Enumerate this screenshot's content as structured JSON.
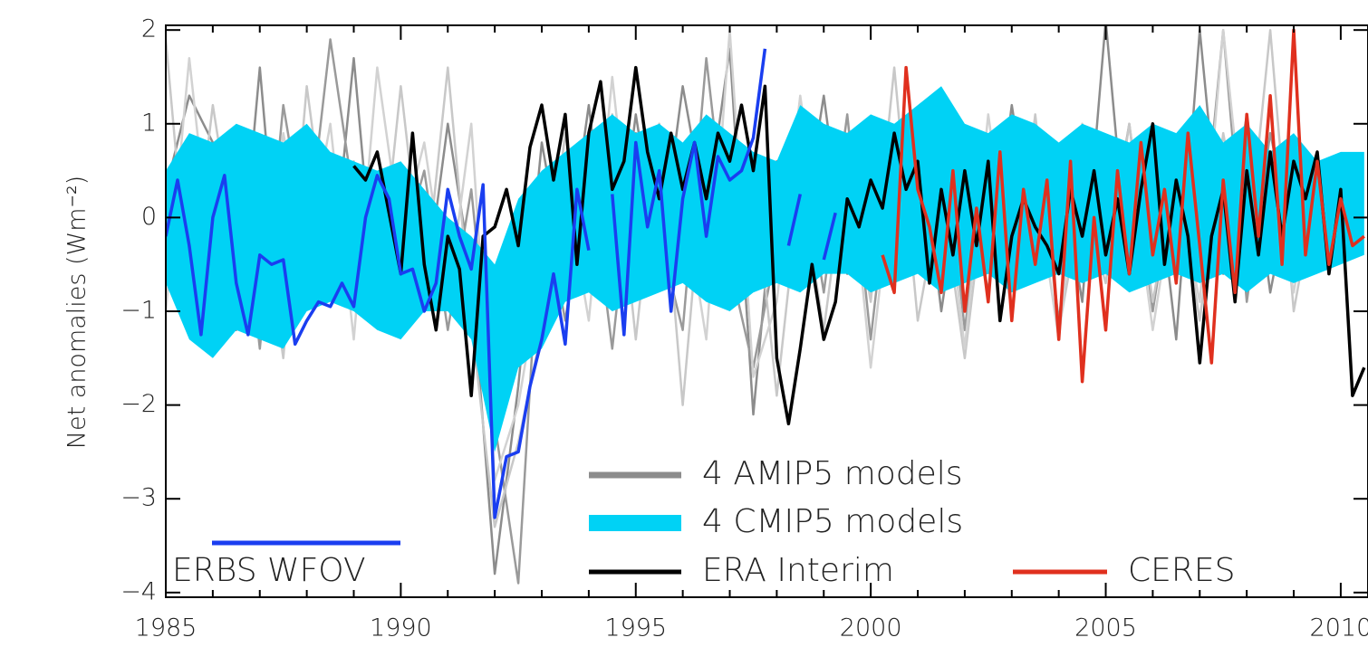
{
  "chart_data": {
    "type": "line",
    "ylabel": "Net anomalies (Wm⁻²)",
    "xlim": [
      1985,
      2010.58
    ],
    "ylim": [
      -4.05,
      2.05
    ],
    "xticks": [
      1985,
      1990,
      1995,
      2000,
      2005,
      2010
    ],
    "xminorticks": [
      1986,
      1987,
      1988,
      1989,
      1991,
      1992,
      1993,
      1994,
      1996,
      1997,
      1998,
      1999,
      2001,
      2002,
      2003,
      2004,
      2006,
      2007,
      2008,
      2009
    ],
    "yticks": [
      {
        "value": -4,
        "label": "−4"
      },
      {
        "value": -3,
        "label": "−3"
      },
      {
        "value": -2,
        "label": "−2"
      },
      {
        "value": -1,
        "label": "−1"
      },
      0,
      1,
      2
    ],
    "series": [
      {
        "name": "4 AMIP5 models",
        "kind": "ensemble",
        "color": "#8c8c8c",
        "x": [
          1985,
          1985.5,
          1986,
          1986.5,
          1987,
          1987.5,
          1988,
          1988.5,
          1989,
          1989.5,
          1990,
          1990.5,
          1991,
          1991.5,
          1992,
          1992.5,
          1993,
          1993.5,
          1994,
          1994.5,
          1995,
          1995.5,
          1996,
          1996.5,
          1997,
          1997.5,
          1998,
          1998.5,
          1999,
          1999.5,
          2000,
          2000.5,
          2001,
          2001.5,
          2002,
          2002.5,
          2003,
          2003.5,
          2004,
          2004.5,
          2005,
          2005.5,
          2006,
          2006.5,
          2007,
          2007.5,
          2008,
          2008.5,
          2009,
          2009.5,
          2010,
          2010.5
        ],
        "members": [
          {
            "color": "#8c8c8c",
            "values": [
              0.3,
              1.3,
              0.8,
              -1.2,
              1.6,
              -1.3,
              0.9,
              -0.8,
              1.7,
              -1.1,
              0.4,
              -0.9,
              1.0,
              -0.6,
              -3.8,
              -1.8,
              0.8,
              -0.6,
              1.2,
              -0.9,
              1.1,
              -0.5,
              1.4,
              0.0,
              1.8,
              -2.1,
              0.6,
              -0.3,
              1.3,
              -0.6,
              1.0,
              -0.7,
              1.1,
              -1.0,
              0.7,
              -0.8,
              1.2,
              -0.4,
              0.6,
              -0.9,
              2.1,
              -0.7,
              0.9,
              -1.3,
              2.0,
              -0.6,
              1.1,
              -0.8,
              0.5,
              -0.4,
              null,
              null
            ]
          },
          {
            "color": "#9a9a9a",
            "values": [
              -0.5,
              0.6,
              -1.0,
              0.9,
              -1.4,
              1.2,
              -0.3,
              1.9,
              0.2,
              -0.9,
              -0.4,
              0.5,
              -1.2,
              0.3,
              -2.2,
              -3.9,
              0.3,
              -1.1,
              0.6,
              -1.4,
              0.9,
              -0.2,
              -1.2,
              1.7,
              -0.5,
              -1.6,
              -0.3,
              0.8,
              -0.8,
              1.1,
              -1.3,
              0.9,
              -0.5,
              1.2,
              -1.2,
              0.8,
              -0.6,
              1.0,
              -1.1,
              0.9,
              -0.5,
              1.0,
              -1.0,
              0.6,
              -0.6,
              2.0,
              -0.9,
              0.9,
              -0.3,
              0.5,
              null,
              null
            ]
          },
          {
            "color": "#c8c8c8",
            "values": [
              1.9,
              -0.9,
              1.2,
              -0.4,
              0.3,
              -1.5,
              1.4,
              -0.5,
              0.6,
              -1.0,
              1.4,
              -0.8,
              1.6,
              -1.1,
              -3.3,
              -2.4,
              -1.2,
              0.9,
              -0.7,
              1.1,
              -1.3,
              1.0,
              -2.0,
              0.9,
              -0.2,
              0.5,
              -1.9,
              0.4,
              -1.2,
              0.7,
              -0.9,
              1.6,
              -1.1,
              0.3,
              -1.5,
              0.6,
              -1.0,
              1.1,
              -1.2,
              0.2,
              -0.7,
              1.0,
              -0.9,
              0.5,
              -1.1,
              0.9,
              -0.5,
              2.0,
              -1.0,
              0.4,
              null,
              null
            ]
          },
          {
            "color": "#d2d2d2",
            "values": [
              -1.0,
              1.7,
              -0.6,
              0.4,
              -1.2,
              0.9,
              -0.4,
              1.0,
              -1.3,
              1.6,
              -0.2,
              0.8,
              -0.9,
              1.0,
              -2.8,
              -2.0,
              -0.5,
              0.4,
              -1.1,
              1.5,
              -0.8,
              0.5,
              0.3,
              -1.3,
              2.0,
              -1.7,
              -0.9,
              1.3,
              -0.5,
              0.9,
              -1.6,
              0.6,
              -0.3,
              0.8,
              -1.4,
              1.1,
              -0.7,
              0.4,
              -1.3,
              1.0,
              -0.6,
              0.7,
              -1.2,
              0.4,
              -0.9,
              2.0,
              -0.4,
              0.6,
              -0.8,
              0.7,
              null,
              null
            ]
          }
        ]
      },
      {
        "name": "4 CMIP5 models",
        "kind": "band",
        "color": "#00d2f5",
        "x": [
          1985,
          1985.5,
          1986,
          1986.5,
          1987,
          1987.5,
          1988,
          1988.5,
          1989,
          1989.5,
          1990,
          1990.5,
          1991,
          1991.5,
          1992,
          1992.5,
          1993,
          1993.5,
          1994,
          1994.5,
          1995,
          1995.5,
          1996,
          1996.5,
          1997,
          1997.5,
          1998,
          1998.5,
          1999,
          1999.5,
          2000,
          2000.5,
          2001,
          2001.5,
          2002,
          2002.5,
          2003,
          2003.5,
          2004,
          2004.5,
          2005,
          2005.5,
          2006,
          2006.5,
          2007,
          2007.5,
          2008,
          2008.5,
          2009,
          2009.5,
          2010,
          2010.5
        ],
        "lower": [
          -0.7,
          -1.3,
          -1.5,
          -1.2,
          -1.3,
          -1.4,
          -1.0,
          -0.9,
          -1.0,
          -1.2,
          -1.3,
          -1.0,
          -1.0,
          -1.3,
          -2.5,
          -1.6,
          -1.4,
          -0.9,
          -0.8,
          -1.0,
          -0.9,
          -0.8,
          -0.7,
          -0.9,
          -1.0,
          -0.8,
          -0.7,
          -0.8,
          -0.6,
          -0.6,
          -0.8,
          -0.7,
          -0.6,
          -0.8,
          -0.7,
          -0.6,
          -0.8,
          -0.7,
          -0.6,
          -0.7,
          -0.6,
          -0.8,
          -0.7,
          -0.6,
          -0.7,
          -0.6,
          -0.8,
          -0.6,
          -0.7,
          -0.6,
          -0.5,
          -0.4
        ],
        "upper": [
          0.5,
          0.9,
          0.8,
          1.0,
          0.9,
          0.8,
          1.0,
          0.7,
          0.6,
          0.5,
          0.6,
          0.3,
          0.0,
          -0.2,
          -0.5,
          0.2,
          0.5,
          0.7,
          0.9,
          1.1,
          0.9,
          1.0,
          0.8,
          1.1,
          0.9,
          0.7,
          0.6,
          1.2,
          1.0,
          0.9,
          1.1,
          1.0,
          1.2,
          1.4,
          1.0,
          0.9,
          1.1,
          1.0,
          0.8,
          1.0,
          0.9,
          0.8,
          1.0,
          0.9,
          1.2,
          0.8,
          1.0,
          0.7,
          0.9,
          0.6,
          0.7,
          0.7
        ]
      },
      {
        "name": "ERA Interim",
        "kind": "line",
        "color": "#000000",
        "x": [
          1989,
          1989.25,
          1989.5,
          1989.75,
          1990,
          1990.25,
          1990.5,
          1990.75,
          1991,
          1991.25,
          1991.5,
          1991.75,
          1992,
          1992.25,
          1992.5,
          1992.75,
          1993,
          1993.25,
          1993.5,
          1993.75,
          1994,
          1994.25,
          1994.5,
          1994.75,
          1995,
          1995.25,
          1995.5,
          1995.75,
          1996,
          1996.25,
          1996.5,
          1996.75,
          1997,
          1997.25,
          1997.5,
          1997.75,
          1998,
          1998.25,
          1998.5,
          1998.75,
          1999,
          1999.25,
          1999.5,
          1999.75,
          2000,
          2000.25,
          2000.5,
          2000.75,
          2001,
          2001.25,
          2001.5,
          2001.75,
          2002,
          2002.25,
          2002.5,
          2002.75,
          2003,
          2003.25,
          2003.5,
          2003.75,
          2004,
          2004.25,
          2004.5,
          2004.75,
          2005,
          2005.25,
          2005.5,
          2005.75,
          2006,
          2006.25,
          2006.5,
          2006.75,
          2007,
          2007.25,
          2007.5,
          2007.75,
          2008,
          2008.25,
          2008.5,
          2008.75,
          2009,
          2009.25,
          2009.5,
          2009.75,
          2010,
          2010.25,
          2010.5
        ],
        "values": [
          0.55,
          0.4,
          0.7,
          0.05,
          -0.6,
          0.9,
          -0.5,
          -1.2,
          -0.2,
          -0.55,
          -1.9,
          -0.2,
          -0.1,
          0.3,
          -0.3,
          0.75,
          1.2,
          0.4,
          1.1,
          -0.5,
          0.9,
          1.45,
          0.3,
          0.6,
          1.6,
          0.7,
          0.2,
          0.9,
          0.3,
          0.8,
          0.2,
          0.9,
          0.6,
          1.2,
          0.5,
          1.4,
          -1.5,
          -2.2,
          -1.4,
          -0.5,
          -1.3,
          -0.9,
          0.2,
          -0.1,
          0.4,
          0.1,
          0.9,
          0.3,
          0.6,
          -0.7,
          0.3,
          -0.4,
          0.5,
          -0.3,
          0.6,
          -1.1,
          -0.2,
          0.2,
          -0.1,
          -0.3,
          -0.6,
          0.3,
          -0.2,
          0.5,
          -0.4,
          0.2,
          -0.6,
          0.3,
          1.0,
          -0.5,
          0.4,
          -0.2,
          -1.55,
          -0.2,
          0.3,
          -0.9,
          0.5,
          -0.4,
          0.7,
          -0.2,
          0.6,
          0.2,
          0.7,
          -0.6,
          0.3,
          -1.9,
          -1.6
        ]
      },
      {
        "name": "CERES",
        "kind": "line",
        "color": "#e0301e",
        "x": [
          2000.25,
          2000.5,
          2000.75,
          2001,
          2001.25,
          2001.5,
          2001.75,
          2002,
          2002.25,
          2002.5,
          2002.75,
          2003,
          2003.25,
          2003.5,
          2003.75,
          2004,
          2004.25,
          2004.5,
          2004.75,
          2005,
          2005.25,
          2005.5,
          2005.75,
          2006,
          2006.25,
          2006.5,
          2006.75,
          2007,
          2007.25,
          2007.5,
          2007.75,
          2008,
          2008.25,
          2008.5,
          2008.75,
          2009,
          2009.25,
          2009.5,
          2009.75,
          2010,
          2010.25,
          2010.5
        ],
        "values": [
          -0.4,
          -0.8,
          1.6,
          0.3,
          -0.1,
          -0.8,
          0.5,
          -1.0,
          0.1,
          -0.9,
          0.7,
          -1.1,
          0.3,
          -0.5,
          0.4,
          -1.3,
          0.6,
          -1.75,
          0.0,
          -1.2,
          0.5,
          -0.6,
          0.8,
          -0.4,
          0.3,
          -0.7,
          0.9,
          -0.3,
          -1.55,
          0.4,
          -0.8,
          1.1,
          -0.2,
          1.3,
          -0.5,
          2.0,
          -0.4,
          0.6,
          -0.5,
          0.2,
          -0.3,
          -0.2
        ]
      },
      {
        "name": "ERBS WFOV",
        "kind": "line",
        "color": "#1a3ef0",
        "x": [
          1985,
          1985.25,
          1985.5,
          1985.75,
          1986,
          1986.25,
          1986.5,
          1986.75,
          1987,
          1987.25,
          1987.5,
          1987.75,
          1988,
          1988.25,
          1988.5,
          1988.75,
          1989,
          1989.25,
          1989.5,
          1989.75,
          1990,
          1990.25,
          1990.5,
          1990.75,
          1991,
          1991.25,
          1991.5,
          1991.75,
          1992,
          1992.25,
          1992.5,
          1992.75,
          1993,
          1993.25,
          1993.5,
          1993.75,
          1994,
          1994.25,
          1994.5,
          1994.75,
          1995,
          1995.25,
          1995.5,
          1995.75,
          1996,
          1996.25,
          1996.5,
          1996.75,
          1997,
          1997.25,
          1997.5,
          1997.75,
          1998,
          1998.25,
          1998.5,
          1998.75,
          1999,
          1999.25
        ],
        "values": [
          -0.2,
          0.4,
          -0.3,
          -1.25,
          0.0,
          0.45,
          -0.7,
          -1.25,
          -0.4,
          -0.5,
          -0.45,
          -1.35,
          -1.1,
          -0.9,
          -0.95,
          -0.7,
          -0.95,
          0.0,
          0.45,
          0.2,
          -0.6,
          -0.55,
          -1.0,
          -0.7,
          0.3,
          -0.2,
          -0.55,
          0.35,
          -3.2,
          -2.55,
          -2.5,
          -1.8,
          -1.3,
          -0.6,
          -1.35,
          0.3,
          -0.35,
          null,
          0.25,
          -1.25,
          0.8,
          -0.1,
          0.5,
          -1.0,
          0.2,
          0.8,
          -0.2,
          0.65,
          0.4,
          0.5,
          0.85,
          1.8,
          null,
          -0.3,
          0.25,
          null,
          -0.45,
          0.05
        ]
      }
    ]
  }
}
